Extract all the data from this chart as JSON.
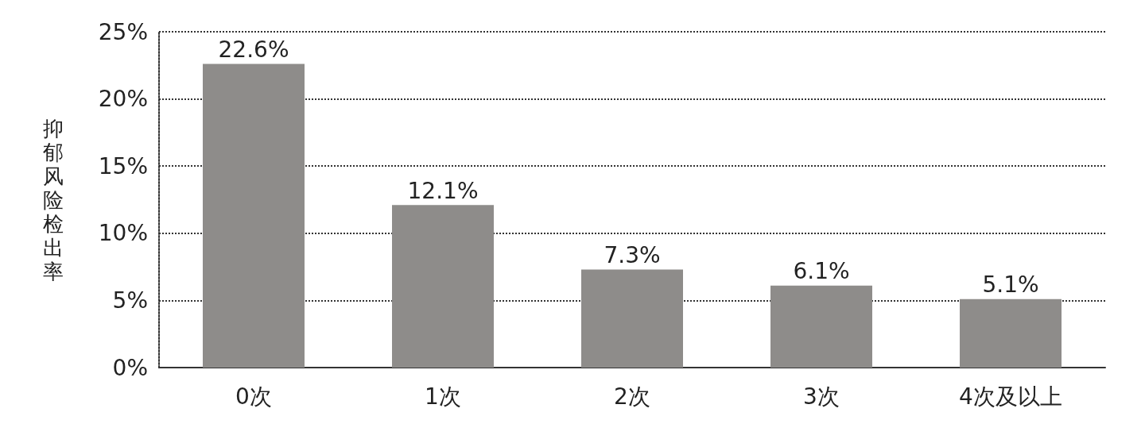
{
  "chart_data": {
    "type": "bar",
    "ylabel": "抑郁风险检出率",
    "categories": [
      "0次",
      "1次",
      "2次",
      "3次",
      "4次及以上"
    ],
    "values": [
      22.6,
      12.1,
      7.3,
      6.1,
      5.1
    ],
    "color": "#8e8c8a",
    "value_labels": [
      "22.6%",
      "12.1%",
      "7.3%",
      "6.1%",
      "5.1%"
    ],
    "ylim": [
      0,
      25
    ],
    "yticks": [
      {
        "value": 0,
        "label": "0%"
      },
      {
        "value": 5,
        "label": "5%"
      },
      {
        "value": 10,
        "label": "10%"
      },
      {
        "value": 15,
        "label": "15%"
      },
      {
        "value": 20,
        "label": "20%"
      },
      {
        "value": 25,
        "label": "25%"
      }
    ],
    "grid": "y"
  }
}
